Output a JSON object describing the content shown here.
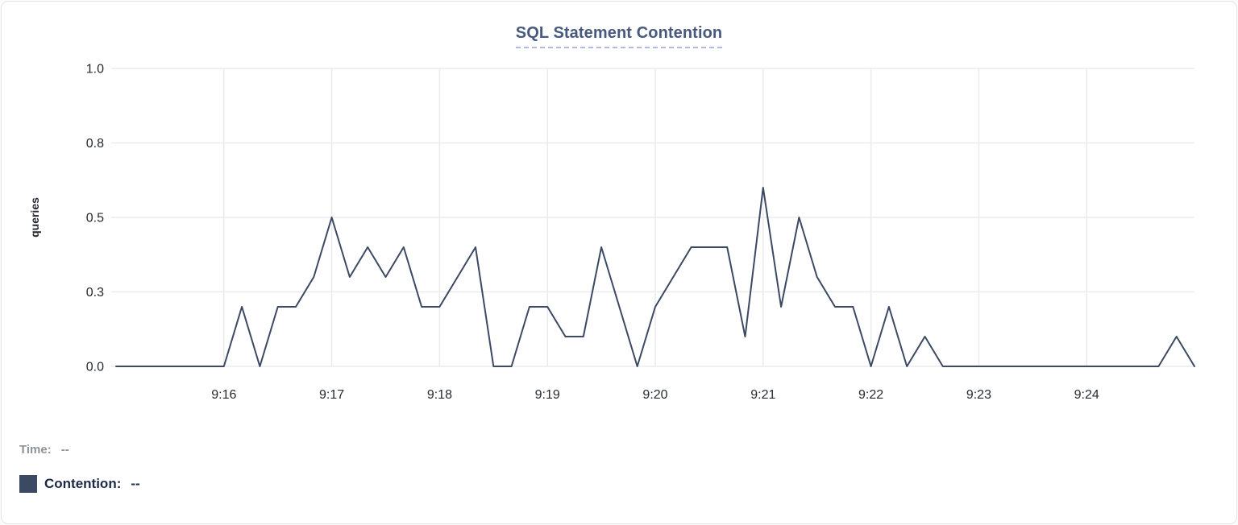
{
  "title": {
    "text": "SQL Statement Contention",
    "color": "#475a7d",
    "underline_color": "#b3b9da"
  },
  "chart_data": {
    "type": "line",
    "title": "SQL Statement Contention",
    "xlabel": "",
    "ylabel": "queries",
    "ylim": [
      0,
      1.0
    ],
    "grid": true,
    "x_start_time": "9:15",
    "x_end_time": "9:25",
    "sample_interval_seconds": 10,
    "x_tick_labels": [
      "9:16",
      "9:17",
      "9:18",
      "9:19",
      "9:20",
      "9:21",
      "9:22",
      "9:23",
      "9:24"
    ],
    "x_tick_minutes": [
      1,
      2,
      3,
      4,
      5,
      6,
      7,
      8,
      9
    ],
    "y_ticks": [
      {
        "value": 0.0,
        "label": "0.0"
      },
      {
        "value": 0.25,
        "label": "0.3"
      },
      {
        "value": 0.5,
        "label": "0.5"
      },
      {
        "value": 0.75,
        "label": "0.8"
      },
      {
        "value": 1.0,
        "label": "1.0"
      }
    ],
    "series": [
      {
        "name": "Contention",
        "color": "#3c4963",
        "values": [
          0,
          0,
          0,
          0,
          0,
          0,
          0,
          0.2,
          0,
          0.2,
          0.2,
          0.3,
          0.5,
          0.3,
          0.4,
          0.3,
          0.4,
          0.2,
          0.2,
          0.3,
          0.4,
          0,
          0,
          0.2,
          0.2,
          0.1,
          0.1,
          0.4,
          0.2,
          0,
          0.2,
          0.3,
          0.4,
          0.4,
          0.4,
          0.1,
          0.6,
          0.2,
          0.5,
          0.3,
          0.2,
          0.2,
          0,
          0.2,
          0,
          0.1,
          0,
          0,
          0,
          0,
          0,
          0,
          0,
          0,
          0,
          0,
          0,
          0,
          0,
          0.1,
          0
        ]
      }
    ]
  },
  "legend": {
    "time_label": "Time:",
    "time_value": "--",
    "contention_label": "Contention:",
    "contention_value": "--",
    "swatch_color": "#3c4963",
    "time_color": "#8e9399",
    "contention_color": "#1b2947"
  },
  "colors": {
    "gridline": "#eaebed",
    "axis_text": "#26292e",
    "card_border": "#e2e4e8",
    "card_background": "#ffffff"
  }
}
